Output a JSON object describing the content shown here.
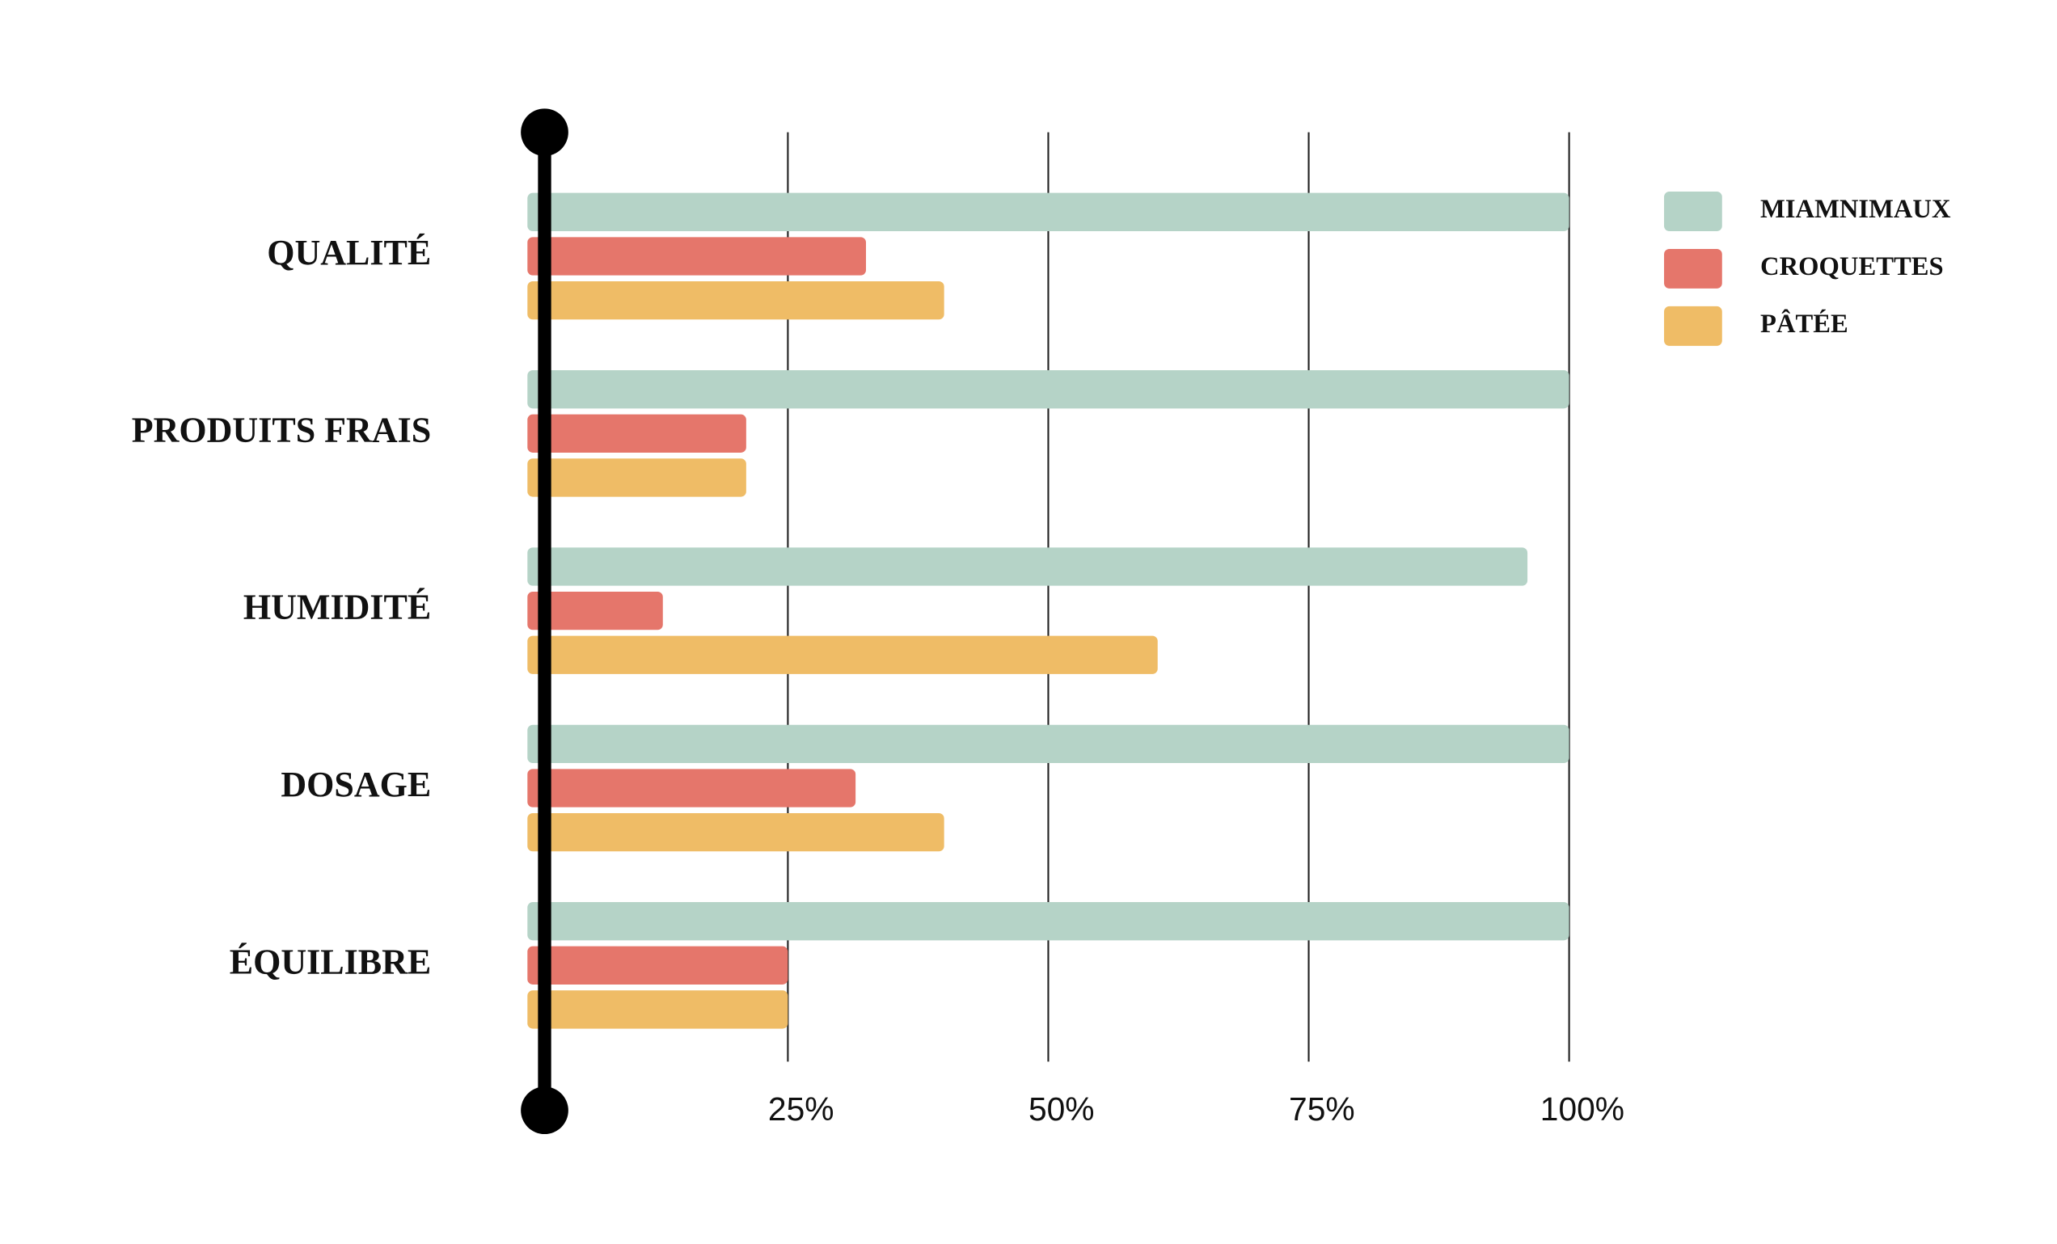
{
  "chart_data": {
    "type": "bar",
    "orientation": "horizontal",
    "categories": [
      "QUALITÉ",
      "PRODUITS FRAIS",
      "HUMIDITÉ",
      "DOSAGE",
      "ÉQUILIBRE"
    ],
    "series": [
      {
        "name": "MIAMNIMAUX",
        "color": "#b5d3c7",
        "values": [
          100,
          100,
          96,
          100,
          100
        ]
      },
      {
        "name": "CROQUETTES",
        "color": "#e5766b",
        "values": [
          32.5,
          21,
          13,
          31.5,
          25
        ]
      },
      {
        "name": "PÂTÉE",
        "color": "#efbc66",
        "values": [
          40,
          21,
          60.5,
          40,
          25
        ]
      }
    ],
    "xlim": [
      0,
      100
    ],
    "xticks": [
      {
        "value": 25,
        "label": "25%"
      },
      {
        "value": 50,
        "label": "50%"
      },
      {
        "value": 75,
        "label": "75%"
      },
      {
        "value": 100,
        "label": "100%"
      }
    ],
    "grid": true,
    "legend": "top-right"
  }
}
